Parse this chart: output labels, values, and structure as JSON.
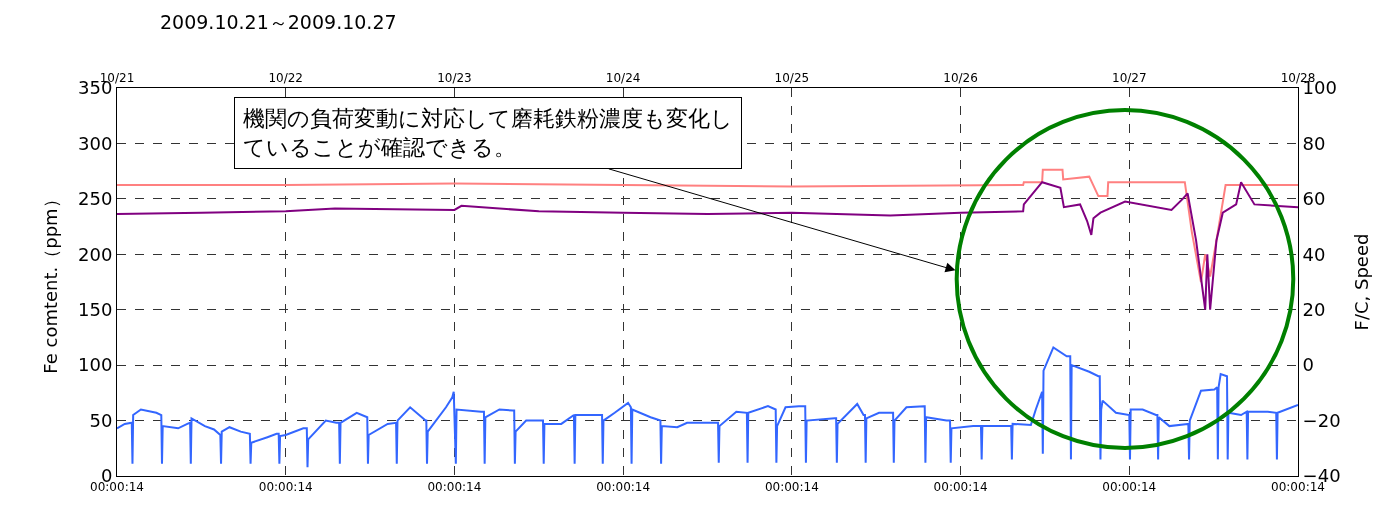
{
  "chart_data": {
    "type": "line",
    "title": "2009.10.21～2009.10.27",
    "ylabel": "Fe comtent.（ppm）",
    "y2label": "F/C, Speed",
    "annotations": [
      "機関の負荷変動に対応して磨耗鉄粉濃度も変化していることが確認できる。"
    ],
    "xlim": [
      "2009-10-21T00:00",
      "2009-10-28T00:00"
    ],
    "xticks": [
      {
        "value": "2009-10-21T00:00",
        "label": "00:00:14"
      },
      {
        "value": "2009-10-22T00:00",
        "label": "00:00:14"
      },
      {
        "value": "2009-10-23T00:00",
        "label": "00:00:14"
      },
      {
        "value": "2009-10-24T00:00",
        "label": "00:00:14"
      },
      {
        "value": "2009-10-25T00:00",
        "label": "00:00:14"
      },
      {
        "value": "2009-10-26T00:00",
        "label": "00:00:14"
      },
      {
        "value": "2009-10-27T00:00",
        "label": "00:00:14"
      },
      {
        "value": "2009-10-28T00:00",
        "label": "00:00:14"
      }
    ],
    "x2lim": [
      "2009-10-21T00:00",
      "2009-10-28T00:00"
    ],
    "x2ticks": [
      {
        "value": "2009-10-21T00:00",
        "label": "10/21"
      },
      {
        "value": "2009-10-22T00:00",
        "label": "10/22"
      },
      {
        "value": "2009-10-23T00:00",
        "label": "10/23"
      },
      {
        "value": "2009-10-24T00:00",
        "label": "10/24"
      },
      {
        "value": "2009-10-25T00:00",
        "label": "10/25"
      },
      {
        "value": "2009-10-26T00:00",
        "label": "10/26"
      },
      {
        "value": "2009-10-27T00:00",
        "label": "10/27"
      },
      {
        "value": "2009-10-28T00:00",
        "label": "10/28"
      }
    ],
    "ylim": [
      0,
      350
    ],
    "yticks": [
      0,
      50,
      100,
      150,
      200,
      250,
      300,
      350
    ],
    "y2lim": [
      -40,
      100
    ],
    "y2ticks": [
      {
        "value": -40,
        "label": "−40"
      },
      {
        "value": -20,
        "label": "−20"
      },
      0,
      20,
      40,
      60,
      80,
      100
    ],
    "grid": true,
    "line_style": "solid",
    "marker": "none",
    "series": [
      {
        "color": "#3366ff",
        "x": [
          "2009-10-21T00:00",
          "2009-10-21T01:06",
          "2009-10-21T02:06",
          "2009-10-21T02:12",
          "2009-10-21T02:18",
          "2009-10-21T03:24",
          "2009-10-21T05:36",
          "2009-10-21T06:18",
          "2009-10-21T06:24",
          "2009-10-21T06:30",
          "2009-10-21T08:42",
          "2009-10-21T10:00",
          "2009-10-21T10:24",
          "2009-10-21T10:30",
          "2009-10-21T10:36",
          "2009-10-21T12:30",
          "2009-10-21T13:48",
          "2009-10-21T14:42",
          "2009-10-21T14:48",
          "2009-10-21T14:54",
          "2009-10-21T16:00",
          "2009-10-21T17:36",
          "2009-10-21T18:54",
          "2009-10-21T19:00",
          "2009-10-21T19:06",
          "2009-10-21T21:24",
          "2009-10-21T22:42",
          "2009-10-21T23:00",
          "2009-10-21T23:06",
          "2009-10-21T23:12",
          "2009-10-22T00:00",
          "2009-10-22T02:30",
          "2009-10-22T03:00",
          "2009-10-22T03:06",
          "2009-10-22T03:12",
          "2009-10-22T05:42",
          "2009-10-22T07:12",
          "2009-10-22T07:36",
          "2009-10-22T07:42",
          "2009-10-22T07:48",
          "2009-10-22T10:06",
          "2009-10-22T11:36",
          "2009-10-22T11:42",
          "2009-10-22T11:48",
          "2009-10-22T14:30",
          "2009-10-22T15:42",
          "2009-10-22T15:48",
          "2009-10-22T15:54",
          "2009-10-22T17:42",
          "2009-10-22T19:54",
          "2009-10-22T20:00",
          "2009-10-22T20:06",
          "2009-10-22T20:12",
          "2009-10-22T22:48",
          "2009-10-22T23:42",
          "2009-10-22T23:54",
          "2009-10-23T00:12",
          "2009-10-23T00:18",
          "2009-10-23T03:48",
          "2009-10-23T04:12",
          "2009-10-23T04:18",
          "2009-10-23T04:24",
          "2009-10-23T06:24",
          "2009-10-23T08:18",
          "2009-10-23T08:30",
          "2009-10-23T08:36",
          "2009-10-23T08:42",
          "2009-10-23T10:12",
          "2009-10-23T12:24",
          "2009-10-23T12:36",
          "2009-10-23T12:42",
          "2009-10-23T12:48",
          "2009-10-23T15:12",
          "2009-10-23T17:00",
          "2009-10-23T17:06",
          "2009-10-23T17:12",
          "2009-10-23T20:54",
          "2009-10-23T21:00",
          "2009-10-23T21:06",
          "2009-10-23T21:12",
          "2009-10-23T22:48",
          "2009-10-24T00:42",
          "2009-10-24T01:06",
          "2009-10-24T01:12",
          "2009-10-24T01:18",
          "2009-10-24T03:54",
          "2009-10-24T05:18",
          "2009-10-24T05:24",
          "2009-10-24T05:30",
          "2009-10-24T07:42",
          "2009-10-24T09:06",
          "2009-10-24T13:30",
          "2009-10-24T13:36",
          "2009-10-24T13:42",
          "2009-10-24T16:06",
          "2009-10-24T17:36",
          "2009-10-24T17:42",
          "2009-10-24T17:48",
          "2009-10-24T20:36",
          "2009-10-24T21:42",
          "2009-10-24T21:48",
          "2009-10-24T21:54",
          "2009-10-24T23:06",
          "2009-10-25T01:00",
          "2009-10-25T01:54",
          "2009-10-25T02:00",
          "2009-10-25T02:06",
          "2009-10-25T06:06",
          "2009-10-25T06:18",
          "2009-10-25T06:24",
          "2009-10-25T06:30",
          "2009-10-25T09:18",
          "2009-10-25T10:12",
          "2009-10-25T10:24",
          "2009-10-25T10:30",
          "2009-10-25T10:36",
          "2009-10-25T12:24",
          "2009-10-25T14:24",
          "2009-10-25T14:30",
          "2009-10-25T14:36",
          "2009-10-25T16:18",
          "2009-10-25T18:48",
          "2009-10-25T18:54",
          "2009-10-25T19:00",
          "2009-10-25T19:06",
          "2009-10-25T22:00",
          "2009-10-25T22:30",
          "2009-10-25T22:36",
          "2009-10-25T22:42",
          "2009-10-26T01:48",
          "2009-10-26T02:54",
          "2009-10-26T03:00",
          "2009-10-26T03:06",
          "2009-10-26T05:36",
          "2009-10-26T07:12",
          "2009-10-26T07:18",
          "2009-10-26T07:24",
          "2009-10-26T10:00",
          "2009-10-26T10:42",
          "2009-10-26T11:36",
          "2009-10-26T11:42",
          "2009-10-26T11:48",
          "2009-10-26T13:12",
          "2009-10-26T15:06",
          "2009-10-26T15:36",
          "2009-10-26T15:42",
          "2009-10-26T15:48",
          "2009-10-26T18:18",
          "2009-10-26T19:36",
          "2009-10-26T19:48",
          "2009-10-26T19:54",
          "2009-10-26T20:00",
          "2009-10-26T20:12",
          "2009-10-26T22:06",
          "2009-10-27T00:00",
          "2009-10-27T00:06",
          "2009-10-27T00:12",
          "2009-10-27T01:54",
          "2009-10-27T03:48",
          "2009-10-27T04:00",
          "2009-10-27T04:06",
          "2009-10-27T04:12",
          "2009-10-27T05:42",
          "2009-10-27T08:18",
          "2009-10-27T08:24",
          "2009-10-27T08:30",
          "2009-10-27T08:36",
          "2009-10-27T10:12",
          "2009-10-27T12:06",
          "2009-10-27T12:30",
          "2009-10-27T12:36",
          "2009-10-27T12:42",
          "2009-10-27T13:00",
          "2009-10-27T13:54",
          "2009-10-27T14:00",
          "2009-10-27T14:06",
          "2009-10-27T15:54",
          "2009-10-27T16:42",
          "2009-10-27T16:48",
          "2009-10-27T16:54",
          "2009-10-27T19:42",
          "2009-10-27T20:54",
          "2009-10-27T21:00",
          "2009-10-27T21:06",
          "2009-10-28T00:00"
        ],
        "values": [
          43,
          47,
          48,
          11,
          55,
          60,
          57,
          55,
          11,
          45,
          43,
          47,
          48,
          11,
          52,
          45,
          42,
          37,
          11,
          40,
          44,
          40,
          38,
          11,
          30,
          35,
          38,
          38,
          11,
          36,
          37,
          43,
          43,
          8,
          33,
          50,
          48,
          48,
          11,
          48,
          57,
          53,
          11,
          37,
          47,
          48,
          11,
          50,
          62,
          50,
          50,
          11,
          40,
          62,
          71,
          76,
          11,
          60,
          58,
          58,
          11,
          53,
          60,
          59,
          59,
          11,
          40,
          50,
          50,
          50,
          11,
          47,
          47,
          55,
          11,
          55,
          55,
          55,
          11,
          50,
          57,
          66,
          62,
          11,
          60,
          53,
          50,
          11,
          45,
          44,
          48,
          48,
          12,
          45,
          58,
          57,
          12,
          57,
          63,
          60,
          12,
          45,
          62,
          63,
          63,
          12,
          50,
          52,
          52,
          12,
          47,
          65,
          55,
          55,
          12,
          52,
          57,
          57,
          12,
          50,
          62,
          63,
          63,
          12,
          53,
          50,
          50,
          12,
          43,
          45,
          45,
          15,
          45,
          45,
          45,
          15,
          47,
          46,
          60,
          76,
          20,
          95,
          116,
          108,
          108,
          15,
          100,
          94,
          90,
          90,
          15,
          60,
          68,
          57,
          55,
          15,
          60,
          60,
          55,
          55,
          15,
          53,
          45,
          47,
          47,
          15,
          50,
          77,
          78,
          80,
          15,
          80,
          92,
          90,
          15,
          57,
          55,
          58,
          15,
          58,
          58,
          57,
          15,
          57,
          64
        ]
      },
      {
        "color": "#ff8080",
        "axis": "y2",
        "x": [
          "2009-10-21T00:00",
          "2009-10-22T00:00",
          "2009-10-23T00:00",
          "2009-10-24T00:00",
          "2009-10-25T00:00",
          "2009-10-26T08:54",
          "2009-10-26T09:00",
          "2009-10-26T11:36",
          "2009-10-26T11:42",
          "2009-10-26T14:30",
          "2009-10-26T14:36",
          "2009-10-26T18:18",
          "2009-10-26T19:36",
          "2009-10-26T20:54",
          "2009-10-26T21:00",
          "2009-10-27T07:54",
          "2009-10-27T08:54",
          "2009-10-27T10:12",
          "2009-10-27T10:48",
          "2009-10-27T11:30",
          "2009-10-27T12:24",
          "2009-10-27T13:42",
          "2009-10-28T00:00"
        ],
        "values": [
          65,
          65,
          65.5,
          65,
          64.5,
          65,
          66,
          66,
          70.5,
          70.5,
          67,
          68,
          61,
          61,
          66,
          66,
          48,
          30,
          40,
          32,
          45,
          65,
          65
        ]
      },
      {
        "color": "#800080",
        "axis": "y2",
        "x": [
          "2009-10-21T00:00",
          "2009-10-21T12:00",
          "2009-10-22T00:00",
          "2009-10-22T07:00",
          "2009-10-23T00:00",
          "2009-10-23T01:00",
          "2009-10-23T12:00",
          "2009-10-24T00:00",
          "2009-10-24T12:00",
          "2009-10-25T00:00",
          "2009-10-25T14:00",
          "2009-10-26T00:00",
          "2009-10-26T08:54",
          "2009-10-26T09:00",
          "2009-10-26T11:36",
          "2009-10-26T14:12",
          "2009-10-26T14:42",
          "2009-10-26T17:00",
          "2009-10-26T18:00",
          "2009-10-26T18:36",
          "2009-10-26T18:54",
          "2009-10-26T19:54",
          "2009-10-26T23:24",
          "2009-10-27T06:00",
          "2009-10-27T07:36",
          "2009-10-27T08:18",
          "2009-10-27T09:30",
          "2009-10-27T10:48",
          "2009-10-27T11:06",
          "2009-10-27T11:30",
          "2009-10-27T12:24",
          "2009-10-27T13:18",
          "2009-10-27T15:12",
          "2009-10-27T15:54",
          "2009-10-27T17:48",
          "2009-10-28T00:00"
        ],
        "values": [
          54.5,
          55,
          55.5,
          56.5,
          56,
          57.5,
          55.5,
          55,
          54.5,
          55,
          54,
          55,
          55.5,
          58,
          66,
          64,
          57,
          58,
          52,
          47,
          53,
          55,
          59,
          56,
          60,
          62,
          45,
          20,
          40,
          20,
          45,
          55,
          58,
          66,
          58,
          57
        ]
      }
    ]
  }
}
